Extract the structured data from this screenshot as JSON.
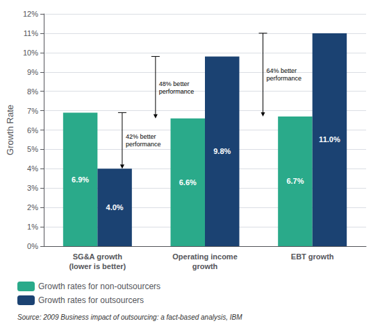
{
  "chart_data": {
    "type": "bar",
    "categories": [
      "SG&A growth\n(lower is better)",
      "Operating income\ngrowth",
      "EBT growth"
    ],
    "series": [
      {
        "name": "Growth rates for non-outsourcers",
        "color": "#2aaa8a",
        "values": [
          6.9,
          6.6,
          6.7
        ],
        "value_labels": [
          "6.9%",
          "6.6%",
          "6.7%"
        ]
      },
      {
        "name": "Growth rates for outsourcers",
        "color": "#1b4272",
        "values": [
          4.0,
          9.8,
          11.0
        ],
        "value_labels": [
          "4.0%",
          "9.8%",
          "11.0%"
        ]
      }
    ],
    "ylabel": "Growth Rate",
    "ylim": [
      0,
      12
    ],
    "yticks": [
      {
        "value": 0,
        "label": "0%"
      },
      {
        "value": 1,
        "label": "1%"
      },
      {
        "value": 2,
        "label": "2%"
      },
      {
        "value": 3,
        "label": "3%"
      },
      {
        "value": 4,
        "label": "4%"
      },
      {
        "value": 5,
        "label": "5%"
      },
      {
        "value": 6,
        "label": "6%"
      },
      {
        "value": 7,
        "label": "7%"
      },
      {
        "value": 8,
        "label": "8%"
      },
      {
        "value": 9,
        "label": "9%"
      },
      {
        "value": 10,
        "label": "10%"
      },
      {
        "value": 11,
        "label": "11%"
      },
      {
        "value": 12,
        "label": "12%"
      }
    ],
    "annotations": [
      {
        "text": "42% better\nperformance",
        "category": "SG&A growth\n(lower is better)"
      },
      {
        "text": "48% better\nperformance",
        "category": "Operating income\ngrowth"
      },
      {
        "text": "64% better\nperformance",
        "category": "EBT growth"
      }
    ],
    "source": "Source: 2009 Business impact of outsourcing: a fact-based analysis, IBM",
    "grid": true,
    "legend": "lower left",
    "data_labels": true
  }
}
